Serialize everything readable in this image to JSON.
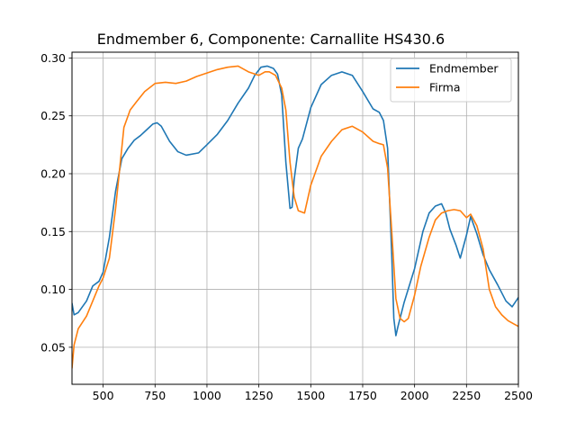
{
  "chart_data": {
    "type": "line",
    "title": "Endmember 6, Componente: Carnallite HS430.6",
    "xlabel": "",
    "ylabel": "",
    "xlim": [
      350,
      2500
    ],
    "ylim": [
      0.018,
      0.305
    ],
    "xticks": [
      500,
      750,
      1000,
      1250,
      1500,
      1750,
      2000,
      2250,
      2500
    ],
    "yticks": [
      0.05,
      0.1,
      0.15,
      0.2,
      0.25,
      0.3
    ],
    "ytick_labels": [
      "0.05",
      "0.10",
      "0.15",
      "0.20",
      "0.25",
      "0.30"
    ],
    "grid": true,
    "legend_position": "top-right",
    "series": [
      {
        "name": "Endmember",
        "color": "#1f77b4",
        "x": [
          350,
          360,
          380,
          420,
          450,
          480,
          500,
          530,
          560,
          590,
          620,
          650,
          680,
          710,
          740,
          760,
          780,
          820,
          860,
          900,
          960,
          1000,
          1050,
          1100,
          1150,
          1200,
          1230,
          1260,
          1290,
          1320,
          1340,
          1360,
          1380,
          1400,
          1410,
          1420,
          1440,
          1460,
          1500,
          1550,
          1600,
          1650,
          1700,
          1750,
          1800,
          1830,
          1850,
          1870,
          1890,
          1900,
          1910,
          1920,
          1950,
          2000,
          2040,
          2070,
          2100,
          2130,
          2150,
          2170,
          2200,
          2220,
          2250,
          2270,
          2300,
          2330,
          2360,
          2400,
          2440,
          2470,
          2500
        ],
        "y": [
          0.088,
          0.078,
          0.08,
          0.09,
          0.103,
          0.107,
          0.115,
          0.145,
          0.185,
          0.213,
          0.222,
          0.229,
          0.233,
          0.238,
          0.243,
          0.244,
          0.241,
          0.228,
          0.219,
          0.216,
          0.218,
          0.225,
          0.234,
          0.246,
          0.261,
          0.274,
          0.285,
          0.292,
          0.293,
          0.291,
          0.286,
          0.268,
          0.21,
          0.17,
          0.171,
          0.195,
          0.222,
          0.23,
          0.257,
          0.277,
          0.285,
          0.288,
          0.285,
          0.271,
          0.256,
          0.253,
          0.246,
          0.222,
          0.13,
          0.075,
          0.06,
          0.068,
          0.089,
          0.118,
          0.15,
          0.166,
          0.172,
          0.174,
          0.166,
          0.152,
          0.138,
          0.127,
          0.147,
          0.163,
          0.148,
          0.13,
          0.117,
          0.104,
          0.09,
          0.085,
          0.093
        ]
      },
      {
        "name": "Firma",
        "color": "#ff7f0e",
        "x": [
          350,
          360,
          380,
          420,
          450,
          480,
          500,
          530,
          560,
          580,
          600,
          630,
          660,
          700,
          750,
          800,
          850,
          900,
          950,
          1000,
          1050,
          1100,
          1150,
          1200,
          1250,
          1280,
          1300,
          1330,
          1360,
          1380,
          1400,
          1420,
          1440,
          1470,
          1500,
          1550,
          1600,
          1650,
          1700,
          1750,
          1800,
          1830,
          1850,
          1870,
          1890,
          1910,
          1930,
          1950,
          1970,
          2000,
          2030,
          2070,
          2100,
          2130,
          2160,
          2190,
          2220,
          2250,
          2270,
          2300,
          2330,
          2360,
          2390,
          2420,
          2450,
          2480,
          2500
        ],
        "y": [
          0.032,
          0.052,
          0.066,
          0.077,
          0.09,
          0.103,
          0.11,
          0.127,
          0.17,
          0.205,
          0.24,
          0.255,
          0.262,
          0.271,
          0.278,
          0.279,
          0.278,
          0.28,
          0.284,
          0.287,
          0.29,
          0.292,
          0.293,
          0.288,
          0.285,
          0.288,
          0.288,
          0.285,
          0.274,
          0.255,
          0.21,
          0.18,
          0.168,
          0.166,
          0.19,
          0.215,
          0.228,
          0.238,
          0.241,
          0.236,
          0.228,
          0.226,
          0.225,
          0.205,
          0.15,
          0.092,
          0.075,
          0.072,
          0.075,
          0.095,
          0.12,
          0.145,
          0.16,
          0.166,
          0.168,
          0.169,
          0.168,
          0.162,
          0.165,
          0.155,
          0.135,
          0.1,
          0.085,
          0.078,
          0.073,
          0.07,
          0.068
        ]
      }
    ]
  }
}
